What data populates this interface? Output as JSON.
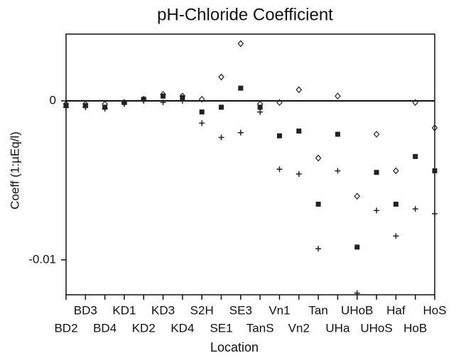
{
  "chart_data": {
    "type": "scatter",
    "title": "pH-Chloride Coefficient",
    "x_label": "Location",
    "y_label": "Coeff (1:µEq/l)",
    "categories": [
      "BD2",
      "BD3",
      "BD4",
      "KD1",
      "KD2",
      "KD3",
      "KD4",
      "S2H",
      "SE1",
      "SE3",
      "TanS",
      "Vn1",
      "Vn2",
      "Tan",
      "UHa",
      "UHoB",
      "UHoS",
      "Haf",
      "HoB",
      "HoS"
    ],
    "series": [
      {
        "marker": "diamond",
        "color": "#222",
        "values": [
          -0.0002,
          -0.0002,
          -0.0002,
          -0.0001,
          0.0001,
          0.0004,
          0.0003,
          0.0001,
          0.0015,
          0.0036,
          -0.0002,
          -0.0001,
          0.0007,
          -0.0036,
          0.0003,
          -0.006,
          -0.0021,
          -0.0044,
          -0.0001,
          -0.0017
        ]
      },
      {
        "marker": "square",
        "color": "#222",
        "values": [
          -0.0003,
          -0.0003,
          -0.0004,
          -0.0001,
          0.0001,
          0.0003,
          0.0002,
          -0.0007,
          -0.0004,
          0.0008,
          -0.0004,
          -0.0022,
          -0.0019,
          -0.0065,
          -0.0021,
          -0.0092,
          -0.0045,
          -0.0065,
          -0.0035,
          -0.0044
        ]
      },
      {
        "marker": "plus",
        "color": "#222",
        "values": [
          -0.0004,
          -0.0004,
          -0.0005,
          -0.0002,
          0.0,
          -0.0001,
          0.0,
          -0.0014,
          -0.0023,
          -0.002,
          -0.0007,
          -0.0043,
          -0.0046,
          -0.0093,
          -0.0044,
          -0.0121,
          -0.0069,
          -0.0085,
          -0.0068,
          -0.0071
        ]
      }
    ],
    "ylim": [
      -0.0122,
      0.0042
    ],
    "yticks": [
      -0.01,
      0
    ],
    "zero_line": true
  }
}
